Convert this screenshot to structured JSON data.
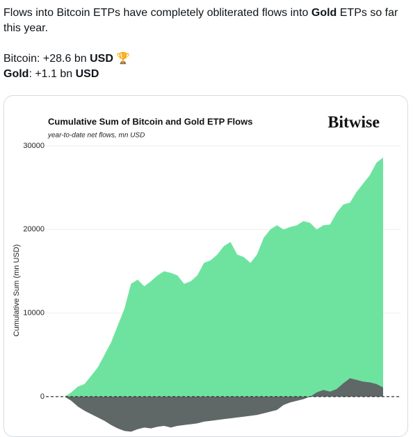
{
  "tweet": {
    "line1": [
      "Flows into Bitcoin ETPs have completely obliterated flows into ",
      "Gold",
      " ETPs so far this year."
    ],
    "line2": [
      "Bitcoin: +28.6 bn ",
      "USD",
      " 🏆"
    ],
    "line3": [
      "Gold",
      ": +1.1 bn ",
      "USD"
    ]
  },
  "chart_data": {
    "type": "area",
    "title": "Cumulative Sum of Bitcoin and Gold ETP Flows",
    "subtitle": "year-to-date net flows, mn USD",
    "brand": "Bitwise",
    "y_label": "Cumulative Sum (mn USD)",
    "ylim": [
      -4750,
      30000
    ],
    "yticks": [
      0,
      10000,
      20000,
      30000
    ],
    "grid": true,
    "series": [
      {
        "color": "#6ee3a0",
        "values": [
          0,
          500,
          1200,
          1500,
          2500,
          3500,
          5000,
          6500,
          8500,
          10500,
          13500,
          14000,
          13200,
          13800,
          14500,
          15000,
          14800,
          14500,
          13500,
          13800,
          14500,
          16000,
          16300,
          17000,
          18000,
          18500,
          17000,
          16700,
          16000,
          17000,
          19000,
          20000,
          20500,
          20000,
          20300,
          20500,
          21000,
          20800,
          20000,
          20500,
          20600,
          22000,
          23000,
          23200,
          24500,
          25500,
          26500,
          28000,
          28600
        ]
      },
      {
        "color": "#5f6867",
        "values": [
          0,
          -500,
          -1200,
          -1700,
          -2100,
          -2500,
          -2900,
          -3400,
          -3800,
          -4100,
          -4200,
          -3900,
          -3700,
          -3800,
          -3600,
          -3500,
          -3700,
          -3500,
          -3400,
          -3300,
          -3200,
          -3000,
          -2900,
          -2800,
          -2700,
          -2600,
          -2500,
          -2400,
          -2300,
          -2200,
          -2000,
          -1800,
          -1600,
          -1000,
          -700,
          -500,
          -300,
          0,
          500,
          800,
          600,
          900,
          1600,
          2200,
          2000,
          1800,
          1700,
          1500,
          1100
        ]
      }
    ]
  }
}
